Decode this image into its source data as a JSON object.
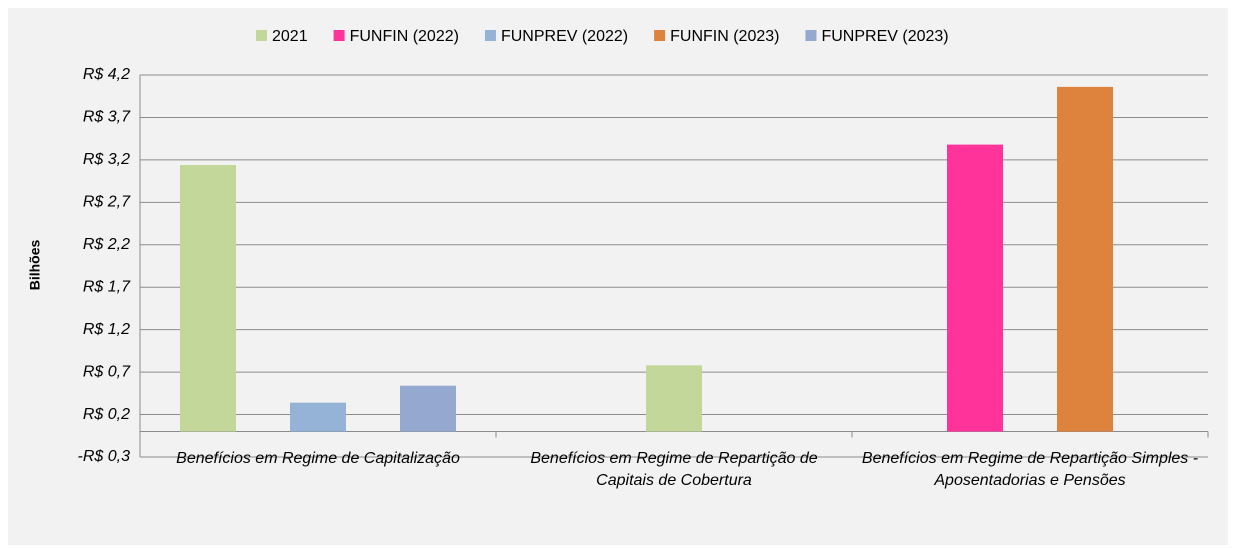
{
  "chart_data": {
    "type": "bar",
    "y_label": "Bilhões",
    "categories": [
      "Benefícios em Regime de Capitalização",
      "Benefícios em Regime de Repartição de Capitais de Cobertura",
      "Benefícios em Regime de Repartição Simples - Aposentadorias e Pensões"
    ],
    "series": [
      {
        "name": "2021",
        "color": "#c4d79b",
        "values": [
          3.14,
          0.78,
          null
        ]
      },
      {
        "name": "FUNFIN (2022)",
        "color": "#ff3399",
        "values": [
          null,
          null,
          3.38
        ]
      },
      {
        "name": "FUNPREV (2022)",
        "color": "#95b3d7",
        "values": [
          0.34,
          null,
          null
        ]
      },
      {
        "name": "FUNFIN (2023)",
        "color": "#dd833e",
        "values": [
          null,
          null,
          4.06
        ]
      },
      {
        "name": "FUNPREV (2023)",
        "color": "#95a8d0",
        "values": [
          0.54,
          null,
          null
        ]
      }
    ],
    "ylim": [
      -0.3,
      4.2
    ],
    "yticks": [
      {
        "value": -0.3,
        "label": "-R$ 0,3"
      },
      {
        "value": 0.2,
        "label": "R$ 0,2"
      },
      {
        "value": 0.7,
        "label": "R$ 0,7"
      },
      {
        "value": 1.2,
        "label": "R$ 1,2"
      },
      {
        "value": 1.7,
        "label": "R$ 1,7"
      },
      {
        "value": 2.2,
        "label": "R$ 2,2"
      },
      {
        "value": 2.7,
        "label": "R$ 2,7"
      },
      {
        "value": 3.2,
        "label": "R$ 3,2"
      },
      {
        "value": 3.7,
        "label": "R$ 3,7"
      },
      {
        "value": 4.2,
        "label": "R$ 4,2"
      }
    ],
    "grid": true,
    "legend": "top"
  }
}
